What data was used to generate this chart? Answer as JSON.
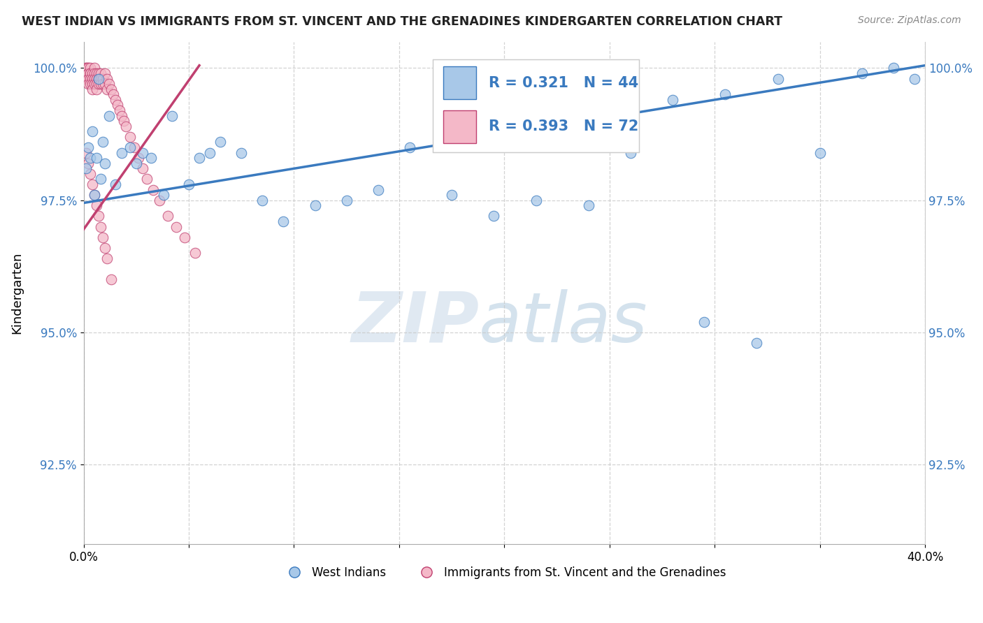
{
  "title": "WEST INDIAN VS IMMIGRANTS FROM ST. VINCENT AND THE GRENADINES KINDERGARTEN CORRELATION CHART",
  "source": "Source: ZipAtlas.com",
  "xlabel": "",
  "ylabel": "Kindergarten",
  "xlim": [
    0.0,
    0.4
  ],
  "ylim": [
    0.91,
    1.005
  ],
  "yticks": [
    0.925,
    0.95,
    0.975,
    1.0
  ],
  "ytick_labels": [
    "92.5%",
    "95.0%",
    "97.5%",
    "100.0%"
  ],
  "xticks": [
    0.0,
    0.05,
    0.1,
    0.15,
    0.2,
    0.25,
    0.3,
    0.35,
    0.4
  ],
  "xtick_labels": [
    "0.0%",
    "",
    "",
    "",
    "",
    "",
    "",
    "",
    "40.0%"
  ],
  "blue_R": 0.321,
  "blue_N": 44,
  "pink_R": 0.393,
  "pink_N": 72,
  "blue_color": "#a8c8e8",
  "pink_color": "#f4b8c8",
  "trend_blue": "#3a7abf",
  "trend_pink": "#c04070",
  "legend_label_blue": "West Indians",
  "legend_label_pink": "Immigrants from St. Vincent and the Grenadines",
  "watermark_zip": "ZIP",
  "watermark_atlas": "atlas",
  "blue_x": [
    0.001,
    0.002,
    0.003,
    0.004,
    0.005,
    0.006,
    0.007,
    0.008,
    0.009,
    0.01,
    0.012,
    0.015,
    0.018,
    0.022,
    0.025,
    0.028,
    0.032,
    0.038,
    0.042,
    0.05,
    0.055,
    0.06,
    0.065,
    0.075,
    0.085,
    0.095,
    0.11,
    0.125,
    0.14,
    0.155,
    0.175,
    0.195,
    0.215,
    0.24,
    0.26,
    0.28,
    0.305,
    0.33,
    0.35,
    0.37,
    0.385,
    0.395,
    0.295,
    0.32
  ],
  "blue_y": [
    0.981,
    0.985,
    0.983,
    0.988,
    0.976,
    0.983,
    0.998,
    0.979,
    0.986,
    0.982,
    0.991,
    0.978,
    0.984,
    0.985,
    0.982,
    0.984,
    0.983,
    0.976,
    0.991,
    0.978,
    0.983,
    0.984,
    0.986,
    0.984,
    0.975,
    0.971,
    0.974,
    0.975,
    0.977,
    0.985,
    0.976,
    0.972,
    0.975,
    0.974,
    0.984,
    0.994,
    0.995,
    0.998,
    0.984,
    0.999,
    1.0,
    0.998,
    0.952,
    0.948
  ],
  "pink_x": [
    0.001,
    0.001,
    0.001,
    0.001,
    0.001,
    0.002,
    0.002,
    0.002,
    0.002,
    0.002,
    0.002,
    0.003,
    0.003,
    0.003,
    0.003,
    0.003,
    0.004,
    0.004,
    0.004,
    0.004,
    0.005,
    0.005,
    0.005,
    0.005,
    0.006,
    0.006,
    0.006,
    0.006,
    0.007,
    0.007,
    0.007,
    0.008,
    0.008,
    0.008,
    0.009,
    0.009,
    0.01,
    0.01,
    0.011,
    0.011,
    0.012,
    0.013,
    0.014,
    0.015,
    0.016,
    0.017,
    0.018,
    0.019,
    0.02,
    0.022,
    0.024,
    0.026,
    0.028,
    0.03,
    0.033,
    0.036,
    0.04,
    0.044,
    0.048,
    0.053,
    0.001,
    0.002,
    0.003,
    0.004,
    0.005,
    0.006,
    0.007,
    0.008,
    0.009,
    0.01,
    0.011,
    0.013
  ],
  "pink_y": [
    1.0,
    1.0,
    0.999,
    0.999,
    0.998,
    1.0,
    1.0,
    0.999,
    0.999,
    0.998,
    0.997,
    1.0,
    0.999,
    0.999,
    0.998,
    0.997,
    0.999,
    0.998,
    0.997,
    0.996,
    1.0,
    0.999,
    0.998,
    0.997,
    0.999,
    0.998,
    0.997,
    0.996,
    0.999,
    0.998,
    0.997,
    0.999,
    0.998,
    0.997,
    0.998,
    0.997,
    0.999,
    0.997,
    0.998,
    0.996,
    0.997,
    0.996,
    0.995,
    0.994,
    0.993,
    0.992,
    0.991,
    0.99,
    0.989,
    0.987,
    0.985,
    0.983,
    0.981,
    0.979,
    0.977,
    0.975,
    0.972,
    0.97,
    0.968,
    0.965,
    0.984,
    0.982,
    0.98,
    0.978,
    0.976,
    0.974,
    0.972,
    0.97,
    0.968,
    0.966,
    0.964,
    0.96
  ],
  "blue_trendline_x": [
    0.0,
    0.4
  ],
  "blue_trendline_y": [
    0.9745,
    1.0005
  ],
  "pink_trendline_x": [
    0.0,
    0.055
  ],
  "pink_trendline_y": [
    0.9695,
    1.0005
  ]
}
